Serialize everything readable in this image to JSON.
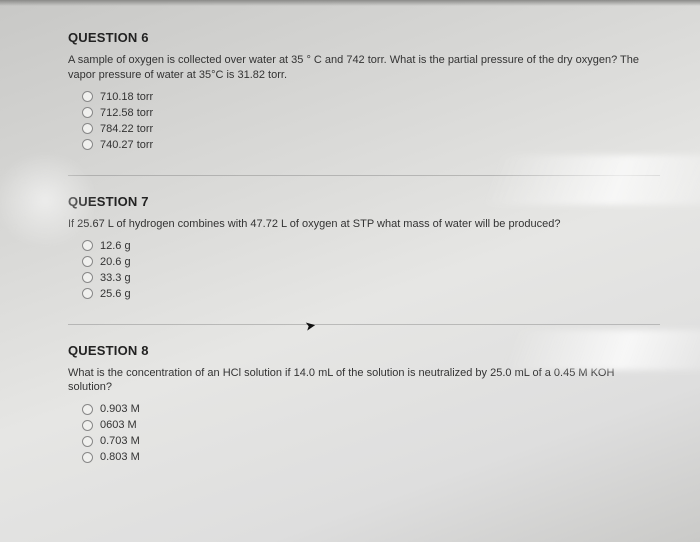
{
  "questions": [
    {
      "title": "QUESTION 6",
      "text": "A sample of oxygen is collected over water at 35 ° C and 742 torr. What is the partial pressure of the dry oxygen? The vapor pressure of water at 35°C is 31.82 torr.",
      "options": [
        "710.18 torr",
        "712.58 torr",
        "784.22 torr",
        "740.27 torr"
      ]
    },
    {
      "title": "QUESTION 7",
      "text": "If 25.67 L of hydrogen combines with 47.72 L of oxygen at STP what mass of water will be produced?",
      "options": [
        "12.6 g",
        "20.6 g",
        "33.3 g",
        "25.6 g"
      ]
    },
    {
      "title": "QUESTION 8",
      "text": "What is the concentration of an HCl solution if 14.0 mL of the solution is neutralized by 25.0 mL of a 0.45 M KOH solution?",
      "options": [
        "0.903 M",
        "0603 M",
        "0.703 M",
        "0.803 M"
      ]
    }
  ]
}
